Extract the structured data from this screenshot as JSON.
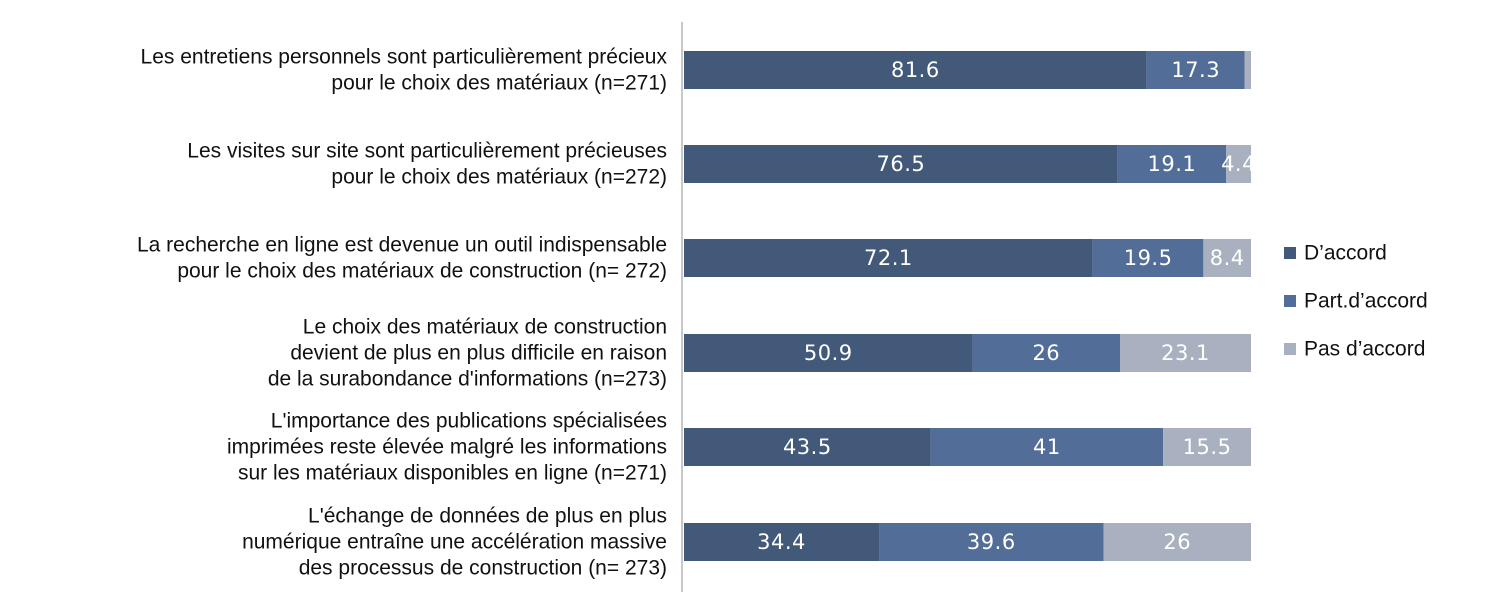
{
  "chart_data": {
    "type": "bar",
    "orientation": "horizontal",
    "stacked": true,
    "categories": [
      [
        "Les entretiens personnels sont particulièrement précieux",
        "pour le choix des matériaux (n=271)"
      ],
      [
        "Les visites sur site sont particulièrement précieuses",
        "pour le choix des matériaux (n=272)"
      ],
      [
        "La recherche en ligne est devenue un outil indispensable",
        "pour le choix des matériaux de construction (n= 272)"
      ],
      [
        "Le choix des matériaux de construction",
        "devient de plus en plus difficile en raison",
        "de la surabondance d'informations (n=273)"
      ],
      [
        "L'importance des publications spécialisées",
        "imprimées reste élevée malgré les informations",
        "sur les matériaux disponibles en ligne (n=271)"
      ],
      [
        "L'échange de données de plus en plus",
        "numérique entraîne une accélération massive",
        "des processus de construction (n= 273)"
      ]
    ],
    "series": [
      {
        "name": "D’accord",
        "color": "#43597a",
        "values": [
          81.6,
          76.5,
          72.1,
          50.9,
          43.5,
          34.4
        ]
      },
      {
        "name": "Part.d’accord",
        "color": "#526e98",
        "values": [
          17.3,
          19.1,
          19.5,
          26,
          41,
          39.6
        ]
      },
      {
        "name": "Pas d’accord",
        "color": "#a9b1c1",
        "values": [
          1.1,
          4.4,
          8.4,
          23.1,
          15.5,
          26
        ]
      }
    ],
    "data_labels": [
      [
        "81.6",
        "17.3",
        ""
      ],
      [
        "76.5",
        "19.1",
        "4.4"
      ],
      [
        "72.1",
        "19.5",
        "8.4"
      ],
      [
        "50.9",
        "26",
        "23.1"
      ],
      [
        "43.5",
        "41",
        "15.5"
      ],
      [
        "34.4",
        "39.6",
        "26"
      ]
    ],
    "xlim": [
      0,
      100
    ],
    "legend_position": "right",
    "grid": false,
    "title": "",
    "xlabel": "",
    "ylabel": ""
  }
}
